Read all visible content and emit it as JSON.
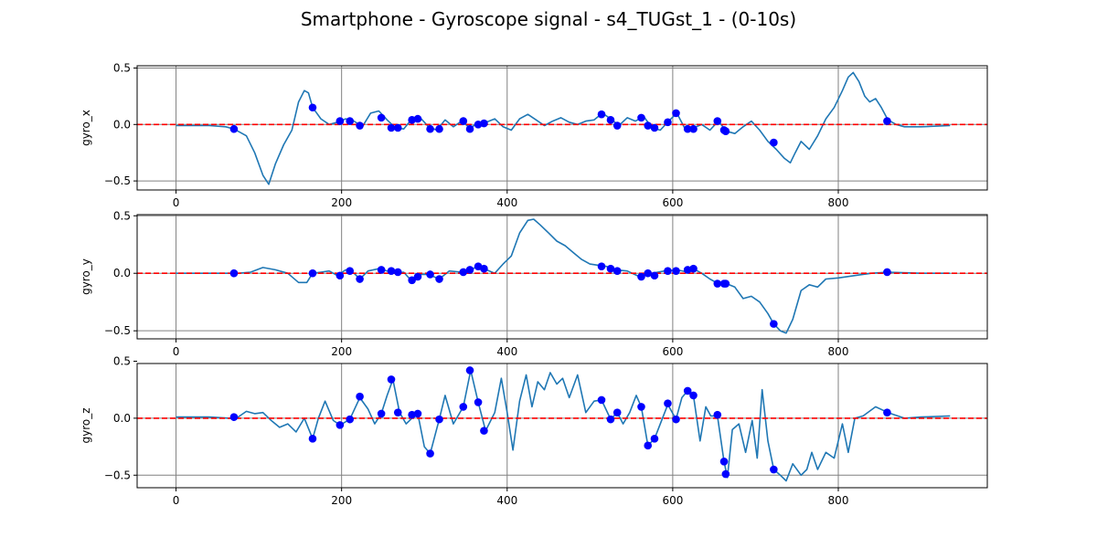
{
  "title": "Smartphone - Gyroscope signal - s4_TUGst_1 - (0-10s)",
  "colors": {
    "signal": "#1f77b4",
    "markers": "#0000ff",
    "zero_line": "#ff0000",
    "grid": "#808080"
  },
  "chart_data": [
    {
      "type": "line",
      "ylabel": "gyro_x",
      "xlim": [
        -47,
        980
      ],
      "ylim": [
        -0.58,
        0.52
      ],
      "xticks": [
        0,
        200,
        400,
        600,
        800
      ],
      "yticks": [
        -0.5,
        0.0,
        0.5
      ],
      "xtick_labels": [
        "0",
        "200",
        "400",
        "600",
        "800"
      ],
      "ytick_labels": [
        "−0.5",
        "0.0",
        "0.5"
      ],
      "grid": true,
      "zero_line": 0,
      "signal": {
        "x": [
          0,
          40,
          60,
          70,
          85,
          95,
          105,
          112,
          120,
          130,
          140,
          148,
          155,
          160,
          165,
          175,
          185,
          195,
          205,
          215,
          225,
          235,
          245,
          255,
          265,
          275,
          285,
          295,
          305,
          315,
          325,
          335,
          345,
          355,
          365,
          375,
          385,
          395,
          405,
          415,
          425,
          435,
          445,
          455,
          465,
          475,
          485,
          495,
          505,
          515,
          525,
          535,
          545,
          555,
          565,
          575,
          585,
          595,
          605,
          615,
          625,
          635,
          645,
          655,
          665,
          675,
          685,
          695,
          705,
          715,
          725,
          735,
          742,
          748,
          755,
          765,
          775,
          785,
          795,
          805,
          812,
          818,
          825,
          832,
          838,
          845,
          852,
          860,
          870,
          880,
          900,
          935
        ],
        "y": [
          -0.01,
          -0.01,
          -0.02,
          -0.04,
          -0.1,
          -0.25,
          -0.45,
          -0.53,
          -0.35,
          -0.18,
          -0.05,
          0.2,
          0.3,
          0.28,
          0.15,
          0.05,
          0.0,
          0.02,
          0.05,
          0.03,
          -0.02,
          0.1,
          0.12,
          0.04,
          -0.03,
          -0.04,
          0.05,
          0.06,
          -0.02,
          -0.05,
          0.04,
          -0.02,
          0.03,
          -0.03,
          0.01,
          0.02,
          0.05,
          -0.02,
          -0.05,
          0.05,
          0.09,
          0.04,
          -0.01,
          0.03,
          0.06,
          0.02,
          0.0,
          0.03,
          0.04,
          0.1,
          0.05,
          -0.01,
          0.06,
          0.03,
          0.07,
          -0.03,
          -0.05,
          0.03,
          0.1,
          -0.04,
          -0.03,
          0.0,
          -0.05,
          0.03,
          -0.06,
          -0.08,
          -0.02,
          0.03,
          -0.05,
          -0.15,
          -0.22,
          -0.3,
          -0.34,
          -0.25,
          -0.15,
          -0.22,
          -0.1,
          0.05,
          0.15,
          0.3,
          0.42,
          0.46,
          0.38,
          0.25,
          0.2,
          0.23,
          0.15,
          0.04,
          0.0,
          -0.02,
          -0.02,
          -0.01
        ]
      },
      "markers": {
        "x": [
          70,
          165,
          198,
          210,
          222,
          248,
          260,
          268,
          285,
          292,
          307,
          318,
          347,
          355,
          365,
          372,
          514,
          525,
          533,
          562,
          570,
          578,
          594,
          604,
          618,
          625,
          654,
          662,
          664,
          722,
          859
        ],
        "y": [
          -0.04,
          0.15,
          0.03,
          0.03,
          -0.01,
          0.06,
          -0.03,
          -0.03,
          0.04,
          0.05,
          -0.04,
          -0.04,
          0.03,
          -0.04,
          0.0,
          0.01,
          0.09,
          0.04,
          -0.01,
          0.06,
          -0.01,
          -0.03,
          0.02,
          0.1,
          -0.04,
          -0.04,
          0.03,
          -0.05,
          -0.06,
          -0.16,
          0.03
        ]
      }
    },
    {
      "type": "line",
      "ylabel": "gyro_y",
      "xlim": [
        -47,
        980
      ],
      "ylim": [
        -0.57,
        0.51
      ],
      "xticks": [
        0,
        200,
        400,
        600,
        800
      ],
      "yticks": [
        -0.5,
        0.0,
        0.5
      ],
      "xtick_labels": [
        "0",
        "200",
        "400",
        "600",
        "800"
      ],
      "ytick_labels": [
        "−0.5",
        "0.0",
        "0.5"
      ],
      "grid": true,
      "zero_line": 0,
      "signal": {
        "x": [
          0,
          40,
          60,
          75,
          90,
          105,
          120,
          135,
          148,
          158,
          165,
          175,
          185,
          195,
          205,
          215,
          222,
          232,
          245,
          255,
          265,
          275,
          285,
          295,
          305,
          318,
          330,
          345,
          355,
          365,
          375,
          385,
          395,
          405,
          415,
          425,
          432,
          440,
          450,
          460,
          470,
          480,
          490,
          500,
          510,
          520,
          530,
          545,
          560,
          575,
          590,
          605,
          618,
          625,
          635,
          645,
          655,
          665,
          675,
          685,
          695,
          705,
          715,
          722,
          730,
          737,
          745,
          755,
          765,
          775,
          785,
          800,
          820,
          840,
          860,
          900,
          935
        ],
        "y": [
          0.0,
          0.0,
          0.0,
          0.0,
          0.01,
          0.05,
          0.03,
          0.0,
          -0.08,
          -0.08,
          0.0,
          0.01,
          0.02,
          -0.02,
          0.03,
          0.0,
          -0.05,
          0.02,
          0.04,
          0.02,
          0.0,
          0.01,
          -0.07,
          -0.01,
          -0.01,
          -0.05,
          0.02,
          0.01,
          0.03,
          0.06,
          0.03,
          0.0,
          0.08,
          0.15,
          0.35,
          0.46,
          0.47,
          0.42,
          0.35,
          0.28,
          0.24,
          0.18,
          0.12,
          0.08,
          0.07,
          0.06,
          0.03,
          0.02,
          -0.03,
          0.0,
          0.02,
          0.03,
          0.01,
          0.04,
          0.0,
          -0.05,
          -0.09,
          -0.09,
          -0.12,
          -0.22,
          -0.2,
          -0.25,
          -0.35,
          -0.44,
          -0.5,
          -0.52,
          -0.4,
          -0.15,
          -0.1,
          -0.12,
          -0.05,
          -0.04,
          -0.02,
          0.0,
          0.01,
          0.0,
          0.0
        ]
      },
      "markers": {
        "x": [
          70,
          165,
          198,
          210,
          222,
          248,
          260,
          268,
          285,
          292,
          307,
          318,
          347,
          355,
          365,
          372,
          514,
          525,
          533,
          562,
          570,
          578,
          594,
          604,
          618,
          625,
          654,
          662,
          664,
          722,
          859
        ],
        "y": [
          0.0,
          0.0,
          -0.02,
          0.02,
          -0.05,
          0.03,
          0.02,
          0.01,
          -0.06,
          -0.03,
          -0.01,
          -0.05,
          0.01,
          0.03,
          0.06,
          0.04,
          0.06,
          0.04,
          0.02,
          -0.03,
          0.0,
          -0.02,
          0.02,
          0.02,
          0.03,
          0.04,
          -0.09,
          -0.09,
          -0.09,
          -0.44,
          0.01
        ]
      }
    },
    {
      "type": "line",
      "ylabel": "gyro_z",
      "xlim": [
        -47,
        980
      ],
      "ylim": [
        -0.61,
        0.48
      ],
      "xticks": [
        0,
        200,
        400,
        600,
        800
      ],
      "yticks": [
        -0.5,
        0.0,
        0.5
      ],
      "xtick_labels": [
        "0",
        "200",
        "400",
        "600",
        "800"
      ],
      "ytick_labels": [
        "−0.5",
        "0.0",
        "0.5"
      ],
      "grid": true,
      "zero_line": 0,
      "signal": {
        "x": [
          0,
          40,
          65,
          75,
          85,
          95,
          105,
          115,
          125,
          135,
          145,
          155,
          165,
          172,
          180,
          190,
          198,
          210,
          222,
          232,
          240,
          248,
          255,
          262,
          270,
          278,
          285,
          292,
          300,
          307,
          318,
          325,
          335,
          347,
          356,
          365,
          374,
          385,
          393,
          400,
          407,
          415,
          423,
          430,
          437,
          445,
          452,
          460,
          467,
          475,
          485,
          495,
          505,
          514,
          525,
          533,
          540,
          548,
          556,
          562,
          570,
          578,
          585,
          594,
          604,
          611,
          618,
          625,
          633,
          640,
          646,
          654,
          662,
          666,
          672,
          680,
          688,
          696,
          702,
          708,
          715,
          722,
          730,
          737,
          745,
          755,
          762,
          768,
          775,
          785,
          795,
          805,
          812,
          820,
          830,
          845,
          860,
          880,
          900,
          935
        ],
        "y": [
          0.01,
          0.01,
          0.0,
          0.01,
          0.06,
          0.04,
          0.05,
          -0.02,
          -0.08,
          -0.05,
          -0.12,
          0.0,
          -0.18,
          0.0,
          0.15,
          -0.02,
          -0.06,
          -0.01,
          0.18,
          0.08,
          -0.05,
          0.04,
          0.2,
          0.34,
          0.05,
          -0.05,
          0.0,
          0.04,
          -0.25,
          -0.31,
          -0.01,
          0.2,
          -0.05,
          0.1,
          0.42,
          0.14,
          -0.11,
          0.05,
          0.35,
          0.05,
          -0.28,
          0.15,
          0.38,
          0.1,
          0.32,
          0.25,
          0.4,
          0.3,
          0.35,
          0.18,
          0.38,
          0.05,
          0.15,
          0.16,
          -0.01,
          0.05,
          -0.05,
          0.05,
          0.2,
          0.1,
          -0.24,
          -0.18,
          -0.05,
          0.12,
          -0.01,
          0.18,
          0.24,
          0.2,
          -0.2,
          0.1,
          0.02,
          0.02,
          -0.38,
          -0.52,
          -0.1,
          -0.05,
          -0.3,
          -0.02,
          -0.35,
          0.25,
          -0.2,
          -0.45,
          -0.5,
          -0.55,
          -0.4,
          -0.5,
          -0.45,
          -0.3,
          -0.45,
          -0.3,
          -0.35,
          -0.05,
          -0.3,
          0.0,
          0.02,
          0.1,
          0.05,
          0.0,
          0.01,
          0.02
        ]
      },
      "markers": {
        "x": [
          70,
          165,
          198,
          210,
          222,
          248,
          260,
          268,
          285,
          292,
          307,
          318,
          347,
          355,
          365,
          372,
          514,
          525,
          533,
          562,
          570,
          578,
          594,
          604,
          618,
          625,
          654,
          662,
          664,
          722,
          859
        ],
        "y": [
          0.01,
          -0.18,
          -0.06,
          -0.01,
          0.19,
          0.04,
          0.34,
          0.05,
          0.03,
          0.04,
          -0.31,
          -0.01,
          0.1,
          0.42,
          0.14,
          -0.11,
          0.16,
          -0.01,
          0.05,
          0.1,
          -0.24,
          -0.18,
          0.13,
          -0.01,
          0.24,
          0.2,
          0.03,
          -0.38,
          -0.49,
          -0.45,
          0.05
        ]
      }
    }
  ]
}
